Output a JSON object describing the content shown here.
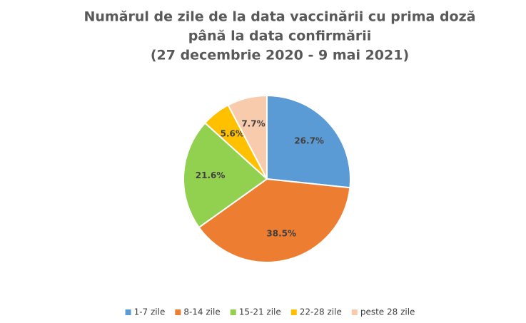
{
  "chart_data": {
    "type": "pie",
    "title": [
      "Numărul de zile de la data vaccinării cu prima doză",
      "până la data confirmării",
      "(27 decembrie 2020 - 9 mai 2021)"
    ],
    "categories": [
      "1-7 zile",
      "8-14 zile",
      "15-21 zile",
      "22-28 zile",
      "peste 28 zile"
    ],
    "values": [
      26.7,
      38.5,
      21.6,
      5.6,
      7.7
    ],
    "value_labels": [
      "26.7%",
      "38.5%",
      "21.6%",
      "5.6%",
      "7.7%"
    ],
    "colors": [
      "#5b9bd5",
      "#ed7d31",
      "#92d050",
      "#ffc000",
      "#f8cbad"
    ],
    "legend": "bottom"
  }
}
